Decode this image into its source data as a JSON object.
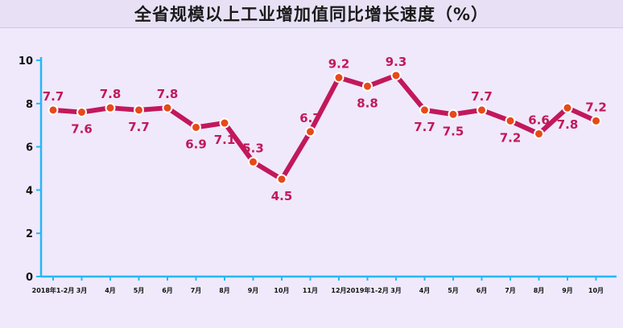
{
  "chart_data": {
    "type": "line",
    "title": "全省规模以上工业增加值同比增长速度（%）",
    "xlabel": "",
    "ylabel": "",
    "ylim": [
      0,
      10
    ],
    "yticks": [
      "0",
      "2",
      "4",
      "6",
      "8",
      "10"
    ],
    "categories": [
      "2018年1-2月",
      "3月",
      "4月",
      "5月",
      "6月",
      "7月",
      "8月",
      "9月",
      "10月",
      "11月",
      "12月",
      "2019年1-2月",
      "3月",
      "4月",
      "5月",
      "6月",
      "7月",
      "8月",
      "9月",
      "10月"
    ],
    "value_labels": [
      "7.7",
      "7.6",
      "7.8",
      "7.7",
      "7.8",
      "6.9",
      "7.1",
      "5.3",
      "4.5",
      "6.7",
      "9.2",
      "8.8",
      "9.3",
      "7.7",
      "7.5",
      "7.7",
      "7.2",
      "6.6",
      "7.8",
      "7.2"
    ],
    "series": [
      {
        "values": [
          7.7,
          7.6,
          7.8,
          7.7,
          7.8,
          6.9,
          7.1,
          5.3,
          4.5,
          6.7,
          9.2,
          8.8,
          9.3,
          7.7,
          7.5,
          7.7,
          7.2,
          6.6,
          7.8,
          7.2
        ]
      }
    ],
    "grid": false,
    "legend": "none",
    "colors": {
      "line": "#c2185b",
      "marker": "#e64a19",
      "axis": "#29b6f6",
      "background": "#efe9fb",
      "title_band": "#e8e1f5"
    }
  }
}
